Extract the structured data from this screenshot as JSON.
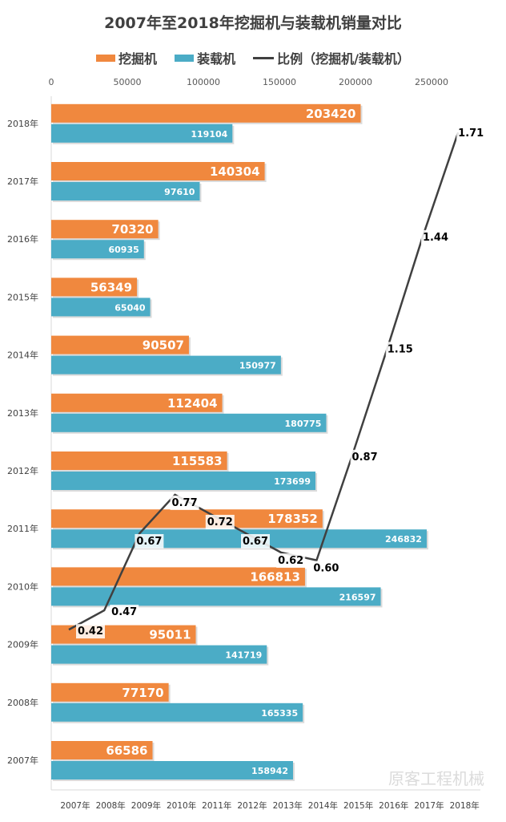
{
  "chart_data": {
    "type": "bar",
    "orientation": "horizontal",
    "title": "2007年至2018年挖掘机与装载机销量对比",
    "categories": [
      "2007年",
      "2008年",
      "2009年",
      "2010年",
      "2011年",
      "2012年",
      "2013年",
      "2014年",
      "2015年",
      "2016年",
      "2017年",
      "2018年"
    ],
    "series": [
      {
        "name": "挖掘机",
        "type": "bar",
        "color": "#F0883E",
        "values": [
          66586,
          77170,
          95011,
          166813,
          178352,
          115583,
          112404,
          90507,
          56349,
          70320,
          140304,
          203420
        ]
      },
      {
        "name": "装载机",
        "type": "bar",
        "color": "#4BACC6",
        "values": [
          158942,
          165335,
          141719,
          216597,
          246832,
          173699,
          180775,
          150977,
          65040,
          60935,
          97610,
          119104
        ]
      },
      {
        "name": "比例（挖掘机/装载机）",
        "type": "line",
        "color": "#404040",
        "values": [
          0.42,
          0.47,
          0.67,
          0.77,
          0.72,
          0.67,
          0.62,
          0.6,
          0.87,
          1.15,
          1.44,
          1.71
        ]
      }
    ],
    "x_ticks": [
      "0",
      "50000",
      "100000",
      "150000",
      "200000",
      "250000"
    ],
    "xlim": [
      0,
      250000
    ],
    "secondary_x_ticks": [
      "2007年",
      "2008年",
      "2009年",
      "2010年",
      "2011年",
      "2012年",
      "2013年",
      "2014年",
      "2015年",
      "2016年",
      "2017年",
      "2018年"
    ],
    "grid": false,
    "legend_position": "top",
    "watermark": "原客工程机械"
  }
}
